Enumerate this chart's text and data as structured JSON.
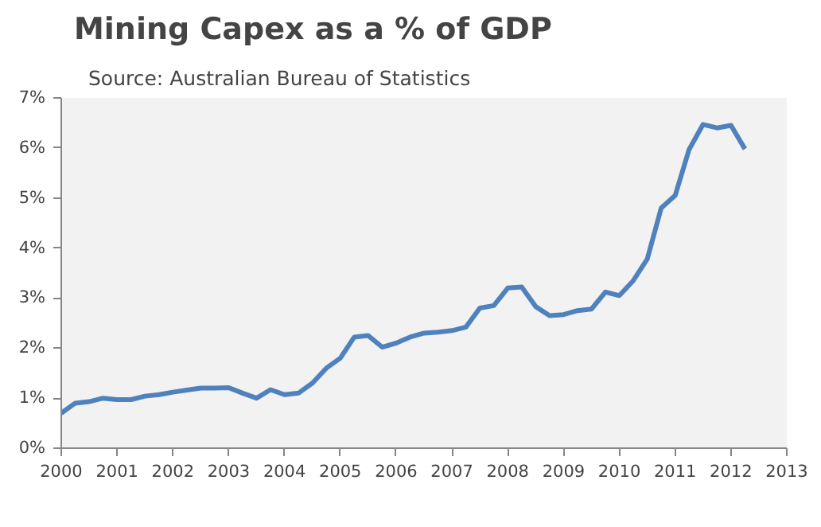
{
  "chart_data": {
    "type": "line",
    "title": "Mining Capex as a % of GDP",
    "subtitle": "Source: Australian Bureau of Statistics",
    "x": [
      2000,
      2000.25,
      2000.5,
      2000.75,
      2001,
      2001.25,
      2001.5,
      2001.75,
      2002,
      2002.25,
      2002.5,
      2002.75,
      2003,
      2003.25,
      2003.5,
      2003.75,
      2004,
      2004.25,
      2004.5,
      2004.75,
      2005,
      2005.25,
      2005.5,
      2005.75,
      2006,
      2006.25,
      2006.5,
      2006.75,
      2007,
      2007.25,
      2007.5,
      2007.75,
      2008,
      2008.25,
      2008.5,
      2008.75,
      2009,
      2009.25,
      2009.5,
      2009.75,
      2010,
      2010.25,
      2010.5,
      2010.75,
      2011,
      2011.25,
      2011.5,
      2011.75,
      2012,
      2012.25
    ],
    "series": [
      {
        "color": "#4f81bd",
        "values": [
          0.7,
          0.9,
          0.93,
          1.0,
          0.97,
          0.97,
          1.04,
          1.07,
          1.12,
          1.16,
          1.2,
          1.2,
          1.21,
          1.1,
          1.0,
          1.17,
          1.07,
          1.1,
          1.3,
          1.6,
          1.8,
          2.22,
          2.25,
          2.02,
          2.1,
          2.22,
          2.3,
          2.32,
          2.35,
          2.42,
          2.8,
          2.85,
          3.2,
          3.22,
          2.83,
          2.65,
          2.67,
          2.75,
          2.78,
          3.12,
          3.05,
          3.35,
          3.78,
          4.8,
          5.05,
          5.97,
          6.47,
          6.4,
          6.45,
          5.98
        ]
      }
    ],
    "xlim": [
      2000,
      2013
    ],
    "xticks": [
      2000,
      2001,
      2002,
      2003,
      2004,
      2005,
      2006,
      2007,
      2008,
      2009,
      2010,
      2011,
      2012,
      2013
    ],
    "ylim": [
      0,
      7
    ],
    "yticks": [
      {
        "value": 0,
        "label": "0%"
      },
      {
        "value": 1,
        "label": "1%"
      },
      {
        "value": 2,
        "label": "2%"
      },
      {
        "value": 3,
        "label": "3%"
      },
      {
        "value": 4,
        "label": "4%"
      },
      {
        "value": 5,
        "label": "5%"
      },
      {
        "value": 6,
        "label": "6%"
      },
      {
        "value": 7,
        "label": "7%"
      }
    ],
    "grid": false,
    "marker": "none",
    "line_style": "solid"
  }
}
